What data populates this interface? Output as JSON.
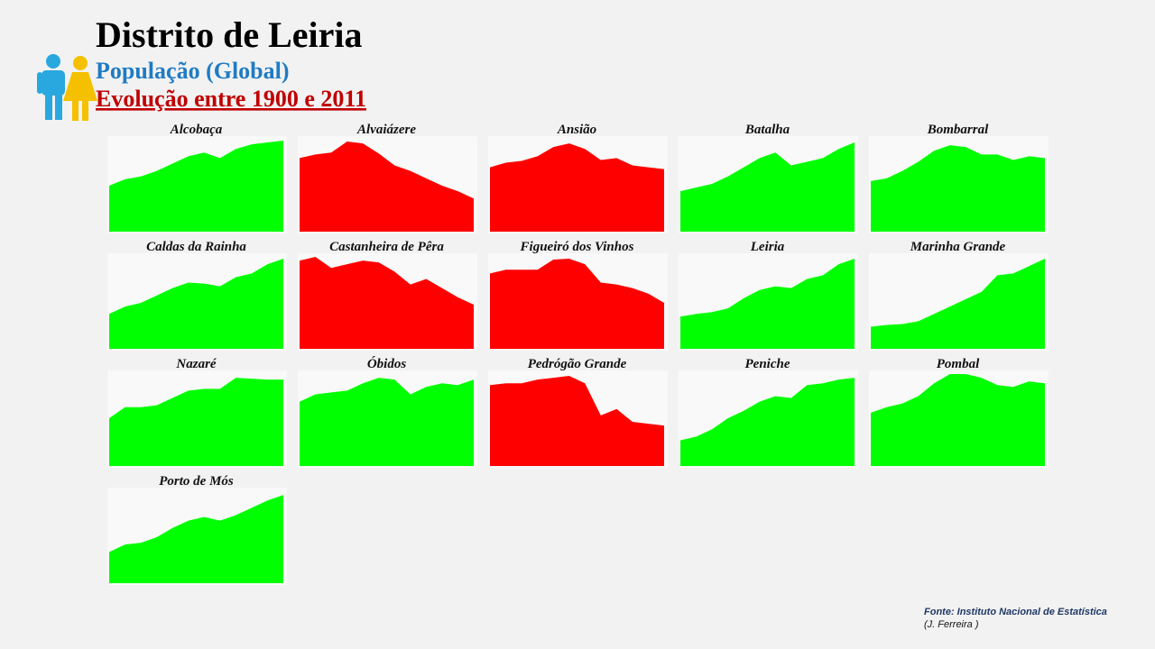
{
  "header": {
    "title": "Distrito de Leiria",
    "subtitle": "População (Global)",
    "period": "Evolução entre 1900 e 2011"
  },
  "footer": {
    "source": "Fonte: Instituto Nacional de Estatística",
    "author": "(J. Ferreira )"
  },
  "chart_data": [
    {
      "type": "area",
      "title": "Alcobaça",
      "color": "#00ff00",
      "ylim": [
        0,
        100
      ],
      "values": [
        50,
        57,
        60,
        66,
        74,
        82,
        86,
        80,
        90,
        95,
        97,
        99
      ]
    },
    {
      "type": "area",
      "title": "Alvaiázere",
      "color": "#ff0000",
      "ylim": [
        0,
        100
      ],
      "values": [
        80,
        84,
        86,
        98,
        96,
        85,
        72,
        66,
        58,
        50,
        44,
        36
      ]
    },
    {
      "type": "area",
      "title": "Ansião",
      "color": "#ff0000",
      "ylim": [
        0,
        100
      ],
      "values": [
        70,
        75,
        77,
        82,
        92,
        96,
        90,
        78,
        80,
        72,
        70,
        68
      ]
    },
    {
      "type": "area",
      "title": "Batalha",
      "color": "#00ff00",
      "ylim": [
        0,
        100
      ],
      "values": [
        44,
        48,
        52,
        60,
        70,
        80,
        86,
        72,
        76,
        80,
        90,
        97
      ]
    },
    {
      "type": "area",
      "title": "Bombarral",
      "color": "#00ff00",
      "ylim": [
        0,
        100
      ],
      "values": [
        55,
        58,
        66,
        76,
        88,
        94,
        92,
        84,
        84,
        78,
        82,
        80
      ]
    },
    {
      "type": "area",
      "title": "Caldas da Rainha",
      "color": "#00ff00",
      "ylim": [
        0,
        100
      ],
      "values": [
        38,
        46,
        50,
        58,
        66,
        72,
        71,
        68,
        78,
        82,
        92,
        98
      ]
    },
    {
      "type": "area",
      "title": "Castanheira de Pêra",
      "color": "#ff0000",
      "ylim": [
        0,
        100
      ],
      "values": [
        96,
        100,
        88,
        92,
        96,
        94,
        84,
        70,
        76,
        66,
        56,
        48
      ]
    },
    {
      "type": "area",
      "title": "Figueiró dos Vinhos",
      "color": "#ff0000",
      "ylim": [
        0,
        100
      ],
      "values": [
        82,
        86,
        86,
        86,
        97,
        98,
        92,
        72,
        70,
        66,
        60,
        50
      ]
    },
    {
      "type": "area",
      "title": "Leiria",
      "color": "#00ff00",
      "ylim": [
        0,
        100
      ],
      "values": [
        35,
        38,
        40,
        44,
        55,
        64,
        68,
        66,
        76,
        80,
        92,
        98
      ]
    },
    {
      "type": "area",
      "title": "Marinha Grande",
      "color": "#00ff00",
      "ylim": [
        0,
        100
      ],
      "values": [
        24,
        26,
        27,
        30,
        38,
        46,
        54,
        62,
        80,
        82,
        90,
        98
      ]
    },
    {
      "type": "area",
      "title": "Nazaré",
      "color": "#00ff00",
      "ylim": [
        0,
        100
      ],
      "values": [
        52,
        64,
        64,
        66,
        74,
        82,
        84,
        84,
        96,
        95,
        94,
        94
      ]
    },
    {
      "type": "area",
      "title": "Óbidos",
      "color": "#00ff00",
      "ylim": [
        0,
        100
      ],
      "values": [
        70,
        78,
        80,
        82,
        90,
        96,
        94,
        78,
        86,
        90,
        88,
        94
      ]
    },
    {
      "type": "area",
      "title": "Pedrógão Grande",
      "color": "#ff0000",
      "ylim": [
        0,
        100
      ],
      "values": [
        88,
        90,
        90,
        94,
        96,
        98,
        90,
        55,
        62,
        48,
        46,
        44
      ]
    },
    {
      "type": "area",
      "title": "Peniche",
      "color": "#00ff00",
      "ylim": [
        0,
        100
      ],
      "values": [
        28,
        32,
        40,
        52,
        60,
        70,
        76,
        74,
        88,
        90,
        94,
        96
      ]
    },
    {
      "type": "area",
      "title": "Pombal",
      "color": "#00ff00",
      "ylim": [
        0,
        100
      ],
      "values": [
        58,
        64,
        68,
        76,
        90,
        100,
        100,
        96,
        88,
        86,
        92,
        90
      ]
    },
    {
      "type": "area",
      "title": "Porto de Mós",
      "color": "#00ff00",
      "ylim": [
        0,
        100
      ],
      "values": [
        34,
        42,
        44,
        50,
        60,
        68,
        72,
        68,
        74,
        82,
        90,
        96
      ]
    }
  ]
}
